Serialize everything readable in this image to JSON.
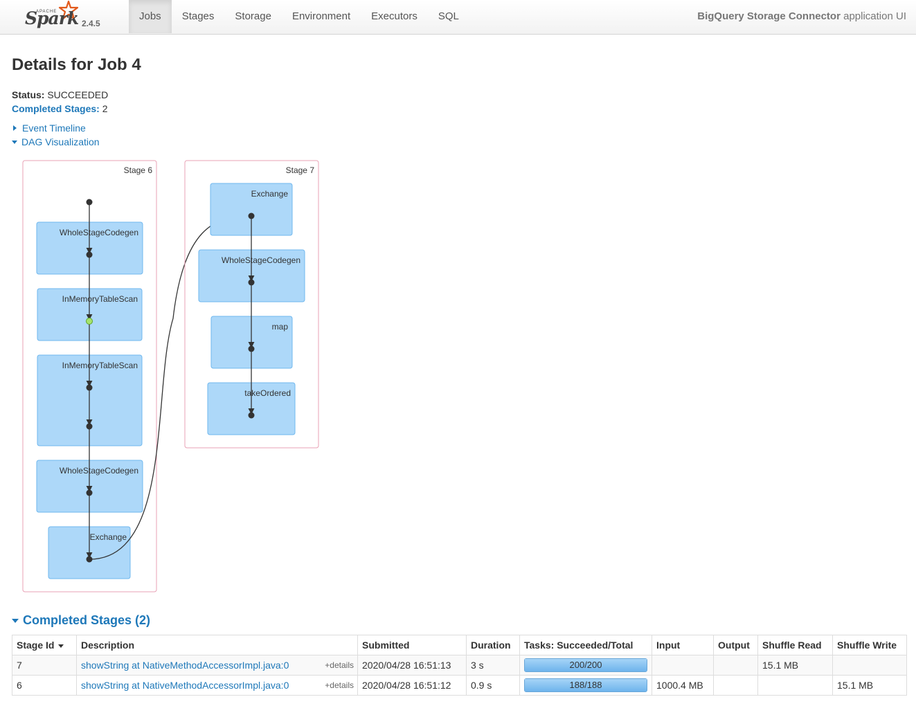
{
  "brand": {
    "apache": "APACHE",
    "spark": "Spark",
    "version": "2.4.5"
  },
  "nav": {
    "tabs": [
      {
        "label": "Jobs",
        "active": true
      },
      {
        "label": "Stages"
      },
      {
        "label": "Storage"
      },
      {
        "label": "Environment"
      },
      {
        "label": "Executors"
      },
      {
        "label": "SQL"
      }
    ],
    "app_name": "BigQuery Storage Connector",
    "app_suffix": "application UI"
  },
  "page": {
    "title": "Details for Job 4",
    "status_label": "Status:",
    "status_value": "SUCCEEDED",
    "completed_label": "Completed Stages:",
    "completed_value": "2",
    "event_timeline": "Event Timeline",
    "dag_visualization": "DAG Visualization"
  },
  "dag": {
    "stages": [
      {
        "label": "Stage 6",
        "nodes": [
          "WholeStageCodegen",
          "InMemoryTableScan",
          "InMemoryTableScan",
          "WholeStageCodegen",
          "Exchange"
        ]
      },
      {
        "label": "Stage 7",
        "nodes": [
          "Exchange",
          "WholeStageCodegen",
          "map",
          "takeOrdered"
        ]
      }
    ],
    "colors": {
      "stage_border": "#e8a0b4",
      "node_fill": "#add8f9",
      "node_border": "#6fb7ee",
      "edge": "#333333",
      "cached_dot": "#a6e36e"
    }
  },
  "completed_stages": {
    "header": "Completed Stages (2)",
    "columns": [
      "Stage Id",
      "Description",
      "Submitted",
      "Duration",
      "Tasks: Succeeded/Total",
      "Input",
      "Output",
      "Shuffle Read",
      "Shuffle Write"
    ],
    "details_label": "+details",
    "rows": [
      {
        "stage_id": "7",
        "description": "showString at NativeMethodAccessorImpl.java:0",
        "submitted": "2020/04/28 16:51:13",
        "duration": "3 s",
        "tasks": "200/200",
        "tasks_fraction": 1.0,
        "input": "",
        "output": "",
        "shuffle_read": "15.1 MB",
        "shuffle_write": ""
      },
      {
        "stage_id": "6",
        "description": "showString at NativeMethodAccessorImpl.java:0",
        "submitted": "2020/04/28 16:51:12",
        "duration": "0.9 s",
        "tasks": "188/188",
        "tasks_fraction": 1.0,
        "input": "1000.4 MB",
        "output": "",
        "shuffle_read": "",
        "shuffle_write": "15.1 MB"
      }
    ]
  }
}
